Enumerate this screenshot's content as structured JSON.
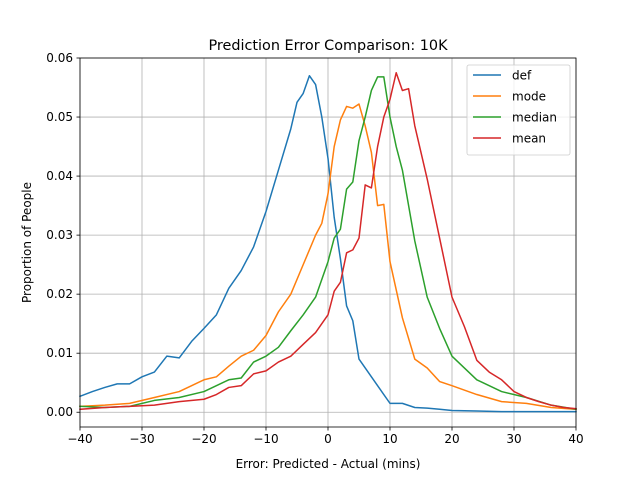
{
  "chart_data": {
    "type": "line",
    "title": "Prediction Error Comparison: 10K",
    "xlabel": "Error: Predicted - Actual (mins)",
    "ylabel": "Proportion of People",
    "xlim": [
      -40,
      40
    ],
    "ylim": [
      -0.0025,
      0.06
    ],
    "xticks": [
      -40,
      -30,
      -20,
      -10,
      0,
      10,
      20,
      30,
      40
    ],
    "yticks": [
      0.0,
      0.01,
      0.02,
      0.03,
      0.04,
      0.05,
      0.06
    ],
    "xtick_labels": [
      "−40",
      "−30",
      "−20",
      "−10",
      "0",
      "10",
      "20",
      "30",
      "40"
    ],
    "ytick_labels": [
      "0.00",
      "0.01",
      "0.02",
      "0.03",
      "0.04",
      "0.05",
      "0.06"
    ],
    "grid": true,
    "legend_position": "top-right",
    "series": [
      {
        "name": "def",
        "color": "#1f77b4",
        "x": [
          -40,
          -38,
          -36,
          -34,
          -32,
          -30,
          -28,
          -26,
          -24,
          -22,
          -20,
          -18,
          -16,
          -14,
          -12,
          -10,
          -8,
          -6,
          -5,
          -4,
          -3,
          -2,
          -1,
          0,
          1,
          2,
          3,
          4,
          5,
          6,
          8,
          10,
          12,
          14,
          16,
          18,
          20,
          24,
          28,
          32,
          36,
          40
        ],
        "y": [
          0.0027,
          0.0035,
          0.0042,
          0.0048,
          0.0048,
          0.006,
          0.0068,
          0.0095,
          0.0092,
          0.012,
          0.0142,
          0.0165,
          0.021,
          0.024,
          0.028,
          0.034,
          0.041,
          0.048,
          0.0525,
          0.054,
          0.057,
          0.0555,
          0.05,
          0.043,
          0.033,
          0.026,
          0.018,
          0.0155,
          0.009,
          0.0075,
          0.0045,
          0.0015,
          0.0015,
          0.0008,
          0.0007,
          0.0005,
          0.0003,
          0.0002,
          0.0001,
          0.0001,
          0.0001,
          0.0001
        ]
      },
      {
        "name": "mode",
        "color": "#ff7f0e",
        "x": [
          -40,
          -36,
          -32,
          -28,
          -24,
          -22,
          -20,
          -18,
          -16,
          -14,
          -12,
          -10,
          -8,
          -6,
          -4,
          -2,
          -1,
          0,
          1,
          2,
          3,
          4,
          5,
          6,
          7,
          8,
          9,
          10,
          12,
          14,
          16,
          18,
          20,
          24,
          28,
          32,
          36,
          40
        ],
        "y": [
          0.001,
          0.0012,
          0.0015,
          0.0025,
          0.0035,
          0.0045,
          0.0055,
          0.006,
          0.0078,
          0.0095,
          0.0105,
          0.013,
          0.017,
          0.02,
          0.025,
          0.03,
          0.032,
          0.037,
          0.045,
          0.0495,
          0.0518,
          0.0515,
          0.0522,
          0.0485,
          0.044,
          0.035,
          0.0352,
          0.0255,
          0.016,
          0.009,
          0.0075,
          0.0052,
          0.0045,
          0.003,
          0.0018,
          0.0015,
          0.0008,
          0.0005
        ]
      },
      {
        "name": "median",
        "color": "#2ca02c",
        "x": [
          -40,
          -36,
          -32,
          -28,
          -24,
          -20,
          -16,
          -14,
          -12,
          -10,
          -8,
          -6,
          -4,
          -2,
          0,
          1,
          2,
          3,
          4,
          5,
          6,
          7,
          8,
          9,
          10,
          11,
          12,
          14,
          16,
          18,
          20,
          24,
          28,
          32,
          36,
          40
        ],
        "y": [
          0.001,
          0.0008,
          0.001,
          0.002,
          0.0025,
          0.0035,
          0.0055,
          0.0058,
          0.0085,
          0.0095,
          0.011,
          0.0138,
          0.0165,
          0.0195,
          0.0255,
          0.0295,
          0.031,
          0.0378,
          0.039,
          0.046,
          0.05,
          0.0545,
          0.0568,
          0.0568,
          0.05,
          0.045,
          0.041,
          0.029,
          0.0195,
          0.0142,
          0.0095,
          0.0055,
          0.0035,
          0.0025,
          0.0012,
          0.0005
        ]
      },
      {
        "name": "mean",
        "color": "#d62728",
        "x": [
          -40,
          -36,
          -32,
          -28,
          -24,
          -20,
          -18,
          -16,
          -14,
          -12,
          -10,
          -8,
          -6,
          -4,
          -2,
          0,
          1,
          2,
          3,
          4,
          5,
          6,
          7,
          8,
          9,
          10,
          11,
          12,
          13,
          14,
          16,
          18,
          20,
          22,
          24,
          26,
          28,
          30,
          32,
          34,
          36,
          38,
          40
        ],
        "y": [
          0.0005,
          0.0008,
          0.001,
          0.0012,
          0.0018,
          0.0022,
          0.003,
          0.0042,
          0.0045,
          0.0065,
          0.007,
          0.0085,
          0.0095,
          0.0115,
          0.0135,
          0.0165,
          0.0205,
          0.022,
          0.027,
          0.0275,
          0.0295,
          0.0385,
          0.038,
          0.045,
          0.05,
          0.053,
          0.0575,
          0.0545,
          0.0548,
          0.0485,
          0.0395,
          0.0295,
          0.0195,
          0.0145,
          0.0088,
          0.0068,
          0.0055,
          0.0035,
          0.0025,
          0.0018,
          0.0012,
          0.0008,
          0.0006
        ]
      }
    ]
  }
}
